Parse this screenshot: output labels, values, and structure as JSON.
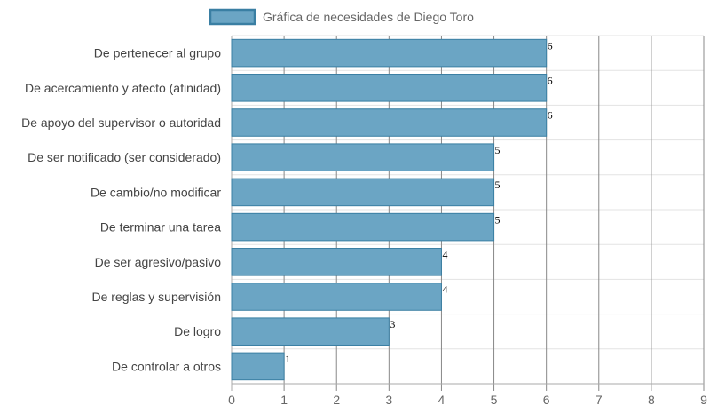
{
  "chart_data": {
    "type": "bar",
    "orientation": "horizontal",
    "categories": [
      "De pertenecer al grupo",
      "De acercamiento y afecto (afinidad)",
      "De apoyo del supervisor o autoridad",
      "De ser notificado (ser considerado)",
      "De cambio/no modificar",
      "De terminar una tarea",
      "De ser agresivo/pasivo",
      "De reglas y supervisión",
      "De logro",
      "De controlar a otros"
    ],
    "series": [
      {
        "name": "Gráfica de necesidades de Diego Toro",
        "values": [
          6,
          6,
          6,
          5,
          5,
          5,
          4,
          4,
          3,
          1
        ],
        "color": "#6ba5c4",
        "border_color": "#3a7fa3"
      }
    ],
    "data_labels": [
      "6",
      "6",
      "6",
      "5",
      "5",
      "5",
      "4",
      "4",
      "3",
      "1"
    ],
    "x_ticks": [
      "0",
      "1",
      "2",
      "3",
      "4",
      "5",
      "6",
      "7",
      "8",
      "9"
    ],
    "xlim": [
      0,
      9
    ],
    "grid": true,
    "legend_position": "top-center"
  }
}
